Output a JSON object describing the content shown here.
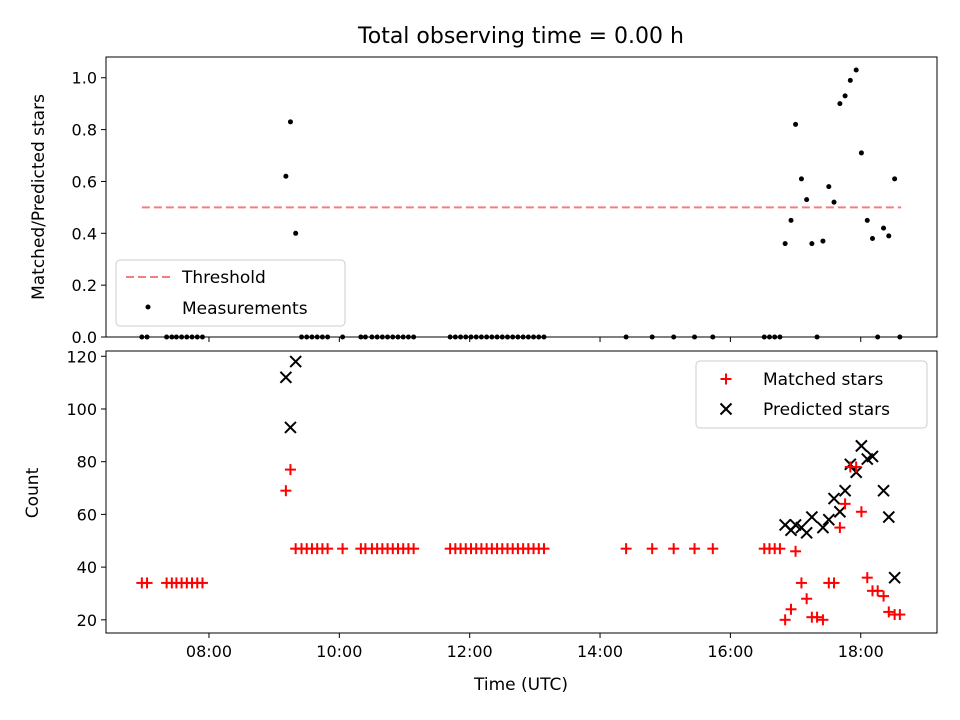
{
  "chart_data": [
    {
      "type": "scatter",
      "title": "Total observing time = 0.00 h",
      "xlabel": "",
      "ylabel": "Matched/Predicted stars",
      "xlim": [
        6.42,
        19.17
      ],
      "ylim": [
        0,
        1.08
      ],
      "x_ticks": [
        8,
        10,
        12,
        14,
        16,
        18
      ],
      "y_ticks": [
        0.0,
        0.2,
        0.4,
        0.6,
        0.8,
        1.0
      ],
      "y_tick_labels": [
        "0.0",
        "0.2",
        "0.4",
        "0.6",
        "0.8",
        "1.0"
      ],
      "grid": false,
      "legend_position": "lower-left",
      "threshold": {
        "name": "Threshold",
        "value": 0.5,
        "x_range": [
          6.97,
          18.62
        ],
        "color": "#f08080"
      },
      "series": [
        {
          "name": "Measurements",
          "color": "#000000",
          "marker": "dot",
          "x": [
            6.97,
            7.05,
            7.35,
            7.43,
            7.5,
            7.58,
            7.66,
            7.74,
            7.82,
            7.9,
            9.18,
            9.25,
            9.33,
            9.42,
            9.5,
            9.58,
            9.66,
            9.74,
            9.82,
            10.05,
            10.33,
            10.4,
            10.5,
            10.58,
            10.66,
            10.74,
            10.82,
            10.9,
            10.98,
            11.06,
            11.14,
            11.7,
            11.78,
            11.86,
            11.94,
            12.02,
            12.1,
            12.18,
            12.26,
            12.34,
            12.42,
            12.5,
            12.58,
            12.66,
            12.74,
            12.82,
            12.9,
            12.98,
            13.06,
            13.14,
            14.4,
            14.8,
            15.13,
            15.45,
            15.73,
            16.52,
            16.6,
            16.68,
            16.76,
            16.84,
            16.93,
            17.0,
            17.09,
            17.17,
            17.25,
            17.33,
            17.42,
            17.51,
            17.59,
            17.68,
            17.76,
            17.84,
            17.93,
            18.01,
            18.1,
            18.18,
            18.26,
            18.35,
            18.43,
            18.52,
            18.6
          ],
          "y": [
            0,
            0,
            0,
            0,
            0,
            0,
            0,
            0,
            0,
            0,
            0.62,
            0.83,
            0.4,
            0,
            0,
            0,
            0,
            0,
            0,
            0,
            0,
            0,
            0,
            0,
            0,
            0,
            0,
            0,
            0,
            0,
            0,
            0,
            0,
            0,
            0,
            0,
            0,
            0,
            0,
            0,
            0,
            0,
            0,
            0,
            0,
            0,
            0,
            0,
            0,
            0,
            0,
            0,
            0,
            0,
            0,
            0,
            0,
            0,
            0,
            0.36,
            0.45,
            0.82,
            0.61,
            0.53,
            0.36,
            0,
            0.37,
            0.58,
            0.52,
            0.9,
            0.93,
            0.99,
            1.03,
            0.71,
            0.45,
            0.38,
            0,
            0.42,
            0.39,
            0.61,
            0
          ]
        }
      ]
    },
    {
      "type": "scatter",
      "title": "",
      "xlabel": "Time (UTC)",
      "ylabel": "Count",
      "xlim": [
        6.42,
        19.17
      ],
      "ylim": [
        15,
        122
      ],
      "x_ticks": [
        8,
        10,
        12,
        14,
        16,
        18
      ],
      "x_tick_labels": [
        "08:00",
        "10:00",
        "12:00",
        "14:00",
        "16:00",
        "18:00"
      ],
      "y_ticks": [
        20,
        40,
        60,
        80,
        100,
        120
      ],
      "y_tick_labels": [
        "20",
        "40",
        "60",
        "80",
        "100",
        "120"
      ],
      "grid": false,
      "legend_position": "upper-right",
      "series": [
        {
          "name": "Matched stars",
          "color": "#ff0000",
          "marker": "plus",
          "x": [
            6.97,
            7.05,
            7.35,
            7.43,
            7.5,
            7.58,
            7.66,
            7.74,
            7.82,
            7.9,
            9.18,
            9.25,
            9.33,
            9.42,
            9.5,
            9.58,
            9.66,
            9.74,
            9.82,
            10.05,
            10.33,
            10.4,
            10.5,
            10.58,
            10.66,
            10.74,
            10.82,
            10.9,
            10.98,
            11.06,
            11.14,
            11.7,
            11.78,
            11.86,
            11.94,
            12.02,
            12.1,
            12.18,
            12.26,
            12.34,
            12.42,
            12.5,
            12.58,
            12.66,
            12.74,
            12.82,
            12.9,
            12.98,
            13.06,
            13.14,
            14.4,
            14.8,
            15.13,
            15.45,
            15.73,
            16.52,
            16.6,
            16.68,
            16.76,
            16.84,
            16.93,
            17.0,
            17.09,
            17.17,
            17.25,
            17.33,
            17.42,
            17.51,
            17.59,
            17.68,
            17.76,
            17.84,
            17.93,
            18.01,
            18.1,
            18.18,
            18.26,
            18.35,
            18.43,
            18.52,
            18.6
          ],
          "y": [
            34,
            34,
            34,
            34,
            34,
            34,
            34,
            34,
            34,
            34,
            69,
            77,
            47,
            47,
            47,
            47,
            47,
            47,
            47,
            47,
            47,
            47,
            47,
            47,
            47,
            47,
            47,
            47,
            47,
            47,
            47,
            47,
            47,
            47,
            47,
            47,
            47,
            47,
            47,
            47,
            47,
            47,
            47,
            47,
            47,
            47,
            47,
            47,
            47,
            47,
            47,
            47,
            47,
            47,
            47,
            47,
            47,
            47,
            47,
            20,
            24,
            46,
            34,
            28,
            21,
            21,
            20,
            34,
            34,
            55,
            64,
            78,
            78,
            61,
            36,
            31,
            31,
            29,
            23,
            22,
            22
          ]
        },
        {
          "name": "Predicted stars",
          "color": "#000000",
          "marker": "x",
          "x": [
            9.18,
            9.25,
            9.33,
            16.84,
            16.93,
            17.0,
            17.09,
            17.17,
            17.25,
            17.42,
            17.51,
            17.59,
            17.68,
            17.76,
            17.84,
            17.93,
            18.01,
            18.1,
            18.18,
            18.35,
            18.43,
            18.52
          ],
          "y": [
            112,
            93,
            118,
            56,
            54,
            56,
            55,
            53,
            59,
            55,
            58,
            66,
            61,
            69,
            79,
            76,
            86,
            81,
            82,
            69,
            59,
            36
          ]
        }
      ]
    }
  ]
}
